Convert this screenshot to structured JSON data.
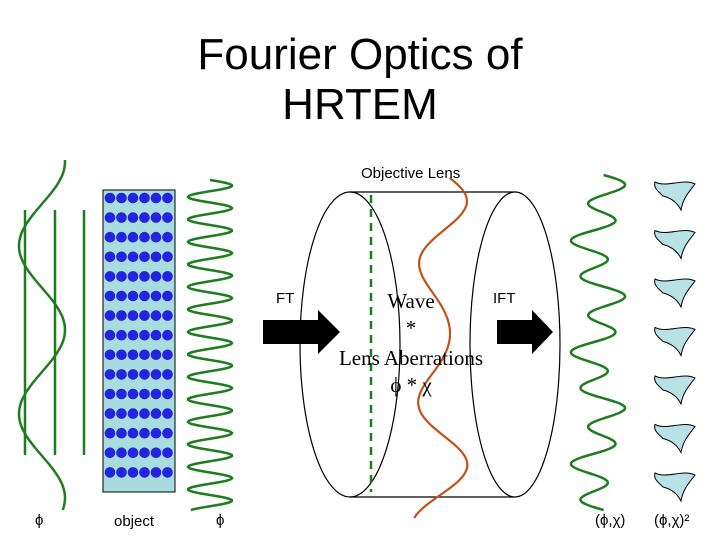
{
  "title_line1": "Fourier Optics of",
  "title_line2": "HRTEM",
  "lens_label": "Objective Lens",
  "ft_label": "FT",
  "ift_label": "IFT",
  "lens_text": {
    "line1": "Wave",
    "line2": "*",
    "line3": "Lens Aberrations",
    "line4": "ϕ * χ"
  },
  "bottom_labels": {
    "phi_left": "ϕ",
    "object": "object",
    "phi_mid": "ϕ",
    "phi_chi": "(ϕ,χ)",
    "phi_chi_sq": "(ϕ,χ)²"
  },
  "colors": {
    "wave_green": "#1e7d1e",
    "aberration_orange": "#c4501a",
    "object_fill": "#a8dcdf",
    "atom_blue": "#2323e0",
    "blob_fill": "#b8e2e4",
    "arrow": "#000000"
  }
}
